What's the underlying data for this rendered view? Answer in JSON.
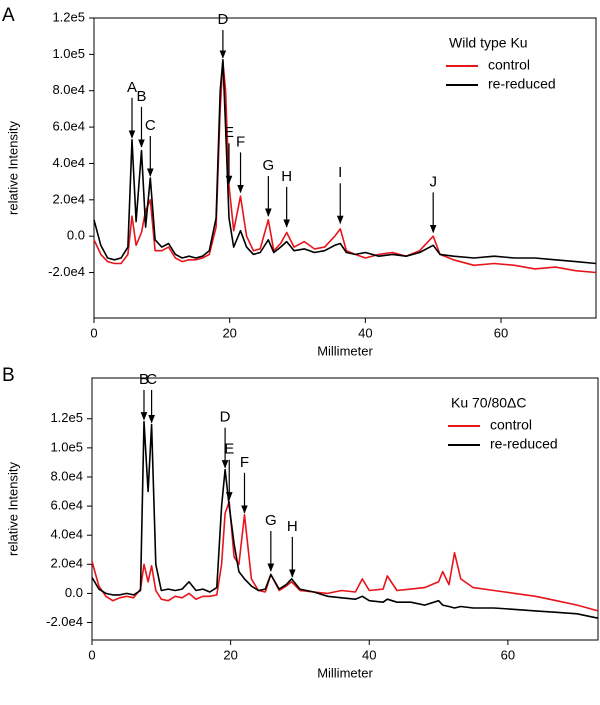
{
  "chart_data": [
    {
      "type": "line",
      "panel": "A",
      "legend_title": "Wild type Ku",
      "legend": "top-right",
      "x_label": "Millimeter",
      "y_label": "relative Intensity",
      "xlim": [
        0,
        74
      ],
      "xticks": [
        0,
        20,
        40,
        60
      ],
      "ylim": [
        -45000,
        120000
      ],
      "yticks": [
        {
          "value": -20000,
          "label": "-2.0e4"
        },
        {
          "value": 0,
          "label": "0.0"
        },
        {
          "value": 20000,
          "label": "2.0e4"
        },
        {
          "value": 40000,
          "label": "4.0e4"
        },
        {
          "value": 60000,
          "label": "6.0e4"
        },
        {
          "value": 80000,
          "label": "8.0e4"
        },
        {
          "value": 100000,
          "label": "1.0e5"
        },
        {
          "value": 120000,
          "label": "1.2e5"
        }
      ],
      "x": [
        0,
        1,
        2,
        3,
        4,
        5,
        5.6,
        6.2,
        7,
        7.6,
        8.3,
        9,
        10,
        11,
        12,
        13,
        14,
        15,
        16,
        17,
        18,
        18.6,
        19,
        19.4,
        19.9,
        20.6,
        21.6,
        22.5,
        23.5,
        24.5,
        25.7,
        26.5,
        27.5,
        28.4,
        29.5,
        31,
        32.5,
        34,
        35.5,
        36.3,
        37.2,
        38.5,
        40,
        42,
        44,
        46,
        48,
        50,
        51,
        53,
        56,
        59,
        62,
        65,
        68,
        71,
        74
      ],
      "series": [
        {
          "name": "control",
          "color": "#e8141b",
          "values": [
            -2000,
            -10000,
            -14000,
            -15000,
            -15000,
            -10000,
            11000,
            -5000,
            2000,
            14000,
            20000,
            -8000,
            -8000,
            -6000,
            -12000,
            -14000,
            -13000,
            -13000,
            -12000,
            -10000,
            5000,
            70000,
            96000,
            80000,
            28000,
            3000,
            22000,
            0,
            -8000,
            -7000,
            9000,
            -8000,
            -4000,
            2000,
            -6000,
            -3000,
            -7000,
            -6000,
            0,
            4000,
            -8000,
            -10000,
            -12000,
            -10000,
            -9000,
            -11000,
            -8000,
            0,
            -10000,
            -13000,
            -16000,
            -15000,
            -16000,
            -18000,
            -17000,
            -19000,
            -20000
          ]
        },
        {
          "name": "re-reduced",
          "color": "#000000",
          "values": [
            9000,
            -5000,
            -12000,
            -13000,
            -12000,
            -6000,
            53000,
            8000,
            47000,
            5000,
            32000,
            -2000,
            -6000,
            -4000,
            -10000,
            -12000,
            -11000,
            -12000,
            -11000,
            -8000,
            10000,
            80000,
            97000,
            60000,
            10000,
            -6000,
            3000,
            -6000,
            -10000,
            -9000,
            -2000,
            -9000,
            -6000,
            -3000,
            -8000,
            -7000,
            -9000,
            -8000,
            -5000,
            -4000,
            -9000,
            -10000,
            -9000,
            -11000,
            -10000,
            -11000,
            -9000,
            -5000,
            -10000,
            -11000,
            -12000,
            -11000,
            -12000,
            -12000,
            -13000,
            -14000,
            -15000
          ]
        }
      ],
      "annotations": [
        {
          "text": "A",
          "x": 5.6,
          "y": 53000
        },
        {
          "text": "B",
          "x": 7,
          "y": 48000
        },
        {
          "text": "C",
          "x": 8.3,
          "y": 32000
        },
        {
          "text": "D",
          "x": 19,
          "y": 97000
        },
        {
          "text": "E",
          "x": 19.9,
          "y": 28000
        },
        {
          "text": "F",
          "x": 21.6,
          "y": 23000
        },
        {
          "text": "G",
          "x": 25.7,
          "y": 10000
        },
        {
          "text": "H",
          "x": 28.4,
          "y": 4000
        },
        {
          "text": "I",
          "x": 36.3,
          "y": 6000
        },
        {
          "text": "J",
          "x": 50,
          "y": 1000
        }
      ]
    },
    {
      "type": "line",
      "panel": "B",
      "legend_title": "Ku 70/80ΔC",
      "legend": "top-right",
      "x_label": "Millimeter",
      "y_label": "relative Intensity",
      "xlim": [
        0,
        73
      ],
      "xticks": [
        0,
        20,
        40,
        60
      ],
      "ylim": [
        -32000,
        148000
      ],
      "yticks": [
        {
          "value": -20000,
          "label": "-2.0e4"
        },
        {
          "value": 0,
          "label": "0.0"
        },
        {
          "value": 20000,
          "label": "2.0e4"
        },
        {
          "value": 40000,
          "label": "4.0e4"
        },
        {
          "value": 60000,
          "label": "6.0e4"
        },
        {
          "value": 80000,
          "label": "8.0e4"
        },
        {
          "value": 100000,
          "label": "1.0e5"
        },
        {
          "value": 120000,
          "label": "1.2e5"
        }
      ],
      "x": [
        0,
        1,
        2,
        3,
        4,
        5,
        6,
        7,
        7.5,
        8.1,
        8.6,
        9.2,
        10,
        11,
        12,
        13,
        14,
        15,
        16,
        17,
        18,
        18.7,
        19.2,
        19.8,
        20.5,
        21.2,
        22,
        23,
        24,
        25,
        25.8,
        27,
        28,
        28.8,
        30,
        32,
        34,
        36,
        38,
        39,
        40,
        42,
        42.6,
        44,
        46,
        48,
        50,
        50.6,
        51.5,
        52.3,
        53.2,
        55,
        58,
        61,
        64,
        67,
        70,
        73
      ],
      "series": [
        {
          "name": "control",
          "color": "#e8141b",
          "values": [
            22000,
            5000,
            -2000,
            -5000,
            -3000,
            -2000,
            -3000,
            3000,
            20000,
            8000,
            19000,
            2000,
            -4000,
            -5000,
            -2000,
            -3000,
            0,
            -4000,
            -2000,
            -2000,
            -1000,
            20000,
            55000,
            63000,
            25000,
            20000,
            54000,
            10000,
            2000,
            1000,
            13000,
            2000,
            5000,
            8000,
            2000,
            1000,
            0,
            2000,
            1000,
            10000,
            2000,
            3000,
            12000,
            2000,
            3000,
            4000,
            8000,
            15000,
            6000,
            28000,
            10000,
            4000,
            2000,
            0,
            -2000,
            -5000,
            -8000,
            -12000
          ]
        },
        {
          "name": "re-reduced",
          "color": "#000000",
          "values": [
            11000,
            3000,
            0,
            -1000,
            -1000,
            0,
            -1000,
            2000,
            118000,
            70000,
            116000,
            20000,
            2000,
            3000,
            2000,
            3000,
            8000,
            2000,
            3000,
            1000,
            4000,
            60000,
            85000,
            60000,
            34000,
            15000,
            10000,
            5000,
            2000,
            3000,
            13000,
            3000,
            6000,
            10000,
            3000,
            1000,
            -2000,
            -3000,
            -4000,
            -2000,
            -5000,
            -6000,
            -4000,
            -6000,
            -6000,
            -8000,
            -5000,
            -8000,
            -9000,
            -10000,
            -9000,
            -10000,
            -10000,
            -11000,
            -12000,
            -13000,
            -14000,
            -17000
          ]
        }
      ],
      "annotations": [
        {
          "text": "B",
          "x": 7.5,
          "y": 118000
        },
        {
          "text": "C",
          "x": 8.6,
          "y": 116000
        },
        {
          "text": "D",
          "x": 19.2,
          "y": 85000
        },
        {
          "text": "E",
          "x": 19.8,
          "y": 63000
        },
        {
          "text": "F",
          "x": 22,
          "y": 54000
        },
        {
          "text": "G",
          "x": 25.8,
          "y": 14000
        },
        {
          "text": "H",
          "x": 28.9,
          "y": 10000
        }
      ]
    }
  ]
}
